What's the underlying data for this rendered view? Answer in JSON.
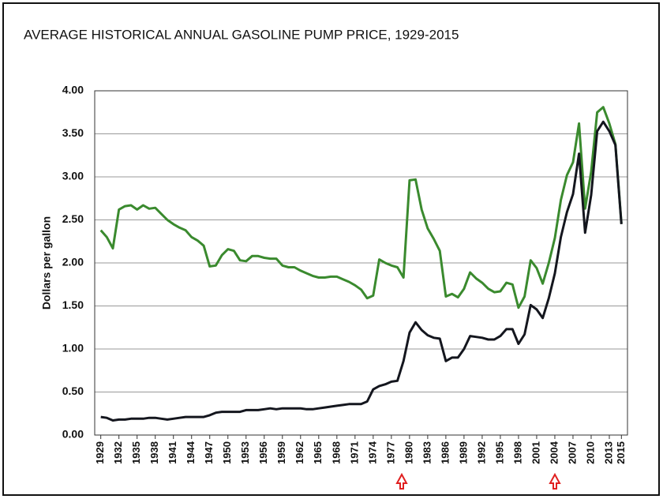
{
  "chart_data": {
    "type": "line",
    "title": "AVERAGE HISTORICAL ANNUAL GASOLINE PUMP PRICE, 1929-2015",
    "ylabel": "Dollars per gallon",
    "x": [
      1929,
      1930,
      1931,
      1932,
      1933,
      1934,
      1935,
      1936,
      1937,
      1938,
      1939,
      1940,
      1941,
      1942,
      1943,
      1944,
      1945,
      1946,
      1947,
      1948,
      1949,
      1950,
      1951,
      1952,
      1953,
      1954,
      1955,
      1956,
      1957,
      1958,
      1959,
      1960,
      1961,
      1962,
      1963,
      1964,
      1965,
      1966,
      1967,
      1968,
      1969,
      1970,
      1971,
      1972,
      1973,
      1974,
      1975,
      1976,
      1977,
      1978,
      1979,
      1980,
      1981,
      1982,
      1983,
      1984,
      1985,
      1986,
      1987,
      1988,
      1989,
      1990,
      1991,
      1992,
      1993,
      1994,
      1995,
      1996,
      1997,
      1998,
      1999,
      2000,
      2001,
      2002,
      2003,
      2004,
      2005,
      2006,
      2007,
      2008,
      2009,
      2010,
      2011,
      2012,
      2013,
      2014,
      2015
    ],
    "series": [
      {
        "color": "#3a8a2e",
        "values": [
          2.38,
          2.3,
          2.17,
          2.62,
          2.66,
          2.67,
          2.62,
          2.67,
          2.63,
          2.64,
          2.57,
          2.5,
          2.45,
          2.41,
          2.38,
          2.3,
          2.26,
          2.2,
          1.96,
          1.97,
          2.09,
          2.16,
          2.14,
          2.03,
          2.02,
          2.08,
          2.08,
          2.06,
          2.05,
          2.05,
          1.97,
          1.95,
          1.95,
          1.91,
          1.88,
          1.85,
          1.83,
          1.83,
          1.84,
          1.84,
          1.81,
          1.78,
          1.74,
          1.69,
          1.59,
          1.62,
          2.04,
          2.0,
          1.97,
          1.95,
          1.83,
          2.96,
          2.97,
          2.62,
          2.4,
          2.28,
          2.14,
          1.61,
          1.64,
          1.6,
          1.7,
          1.89,
          1.82,
          1.77,
          1.7,
          1.66,
          1.67,
          1.77,
          1.75,
          1.48,
          1.61,
          2.03,
          1.94,
          1.76,
          2.0,
          2.29,
          2.73,
          3.02,
          3.17,
          3.62,
          2.63,
          3.06,
          3.75,
          3.81,
          3.62,
          3.38,
          2.46
        ]
      },
      {
        "color": "#14161e",
        "values": [
          0.21,
          0.2,
          0.17,
          0.18,
          0.18,
          0.19,
          0.19,
          0.19,
          0.2,
          0.2,
          0.19,
          0.18,
          0.19,
          0.2,
          0.21,
          0.21,
          0.21,
          0.21,
          0.23,
          0.26,
          0.27,
          0.27,
          0.27,
          0.27,
          0.29,
          0.29,
          0.29,
          0.3,
          0.31,
          0.3,
          0.31,
          0.31,
          0.31,
          0.31,
          0.3,
          0.3,
          0.31,
          0.32,
          0.33,
          0.34,
          0.35,
          0.36,
          0.36,
          0.36,
          0.39,
          0.53,
          0.57,
          0.59,
          0.62,
          0.63,
          0.86,
          1.19,
          1.31,
          1.22,
          1.16,
          1.13,
          1.12,
          0.86,
          0.9,
          0.9,
          1.0,
          1.15,
          1.14,
          1.13,
          1.11,
          1.11,
          1.15,
          1.23,
          1.23,
          1.06,
          1.17,
          1.51,
          1.46,
          1.36,
          1.59,
          1.88,
          2.3,
          2.59,
          2.8,
          3.27,
          2.35,
          2.79,
          3.53,
          3.64,
          3.53,
          3.37,
          2.45
        ]
      }
    ],
    "xlim": [
      1928,
      2016
    ],
    "xticks": [
      1929,
      1932,
      1935,
      1938,
      1941,
      1944,
      1947,
      1950,
      1953,
      1956,
      1959,
      1962,
      1965,
      1968,
      1971,
      1974,
      1977,
      1980,
      1983,
      1986,
      1989,
      1992,
      1995,
      1998,
      2001,
      2004,
      2007,
      2010,
      2013,
      2015
    ],
    "ylim": [
      0,
      4
    ],
    "yticks": [
      {
        "value": 0,
        "label": "0.00"
      },
      {
        "value": 0.5,
        "label": "0.50"
      },
      {
        "value": 1,
        "label": "1.00"
      },
      {
        "value": 1.5,
        "label": "1.50"
      },
      {
        "value": 2,
        "label": "2.00"
      },
      {
        "value": 2.5,
        "label": "2.50"
      },
      {
        "value": 3,
        "label": "3.00"
      },
      {
        "value": 3.5,
        "label": "3.50"
      },
      {
        "value": 4,
        "label": "4.00"
      }
    ],
    "grid": true
  }
}
